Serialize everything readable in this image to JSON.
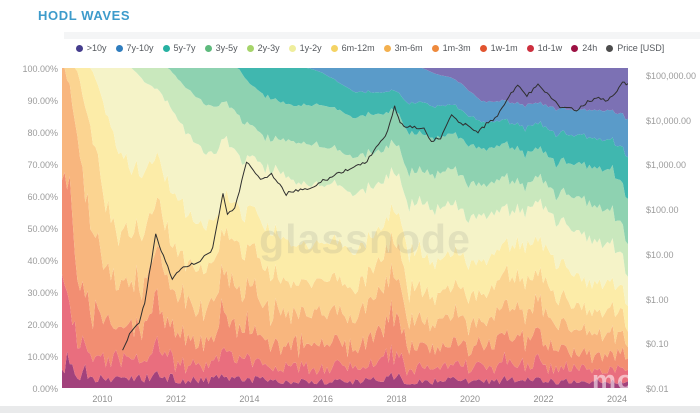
{
  "page": {
    "title": "HODL WAVES",
    "watermark": "glassnode",
    "corner_watermark": "mo"
  },
  "chart_data": {
    "type": "area",
    "stacked": true,
    "stack_unit": "percent",
    "title": "HODL WAVES",
    "x_range": [
      2008.9,
      2024.3
    ],
    "x": [
      2009.0,
      2009.3,
      2009.7,
      2010.0,
      2010.4,
      2010.8,
      2011.2,
      2011.5,
      2011.8,
      2012.2,
      2012.6,
      2013.0,
      2013.3,
      2013.7,
      2014.0,
      2014.4,
      2014.8,
      2015.2,
      2015.6,
      2016.0,
      2016.4,
      2016.8,
      2017.2,
      2017.6,
      2017.95,
      2018.3,
      2018.7,
      2019.1,
      2019.5,
      2019.9,
      2020.3,
      2020.7,
      2021.1,
      2021.5,
      2021.9,
      2022.3,
      2022.7,
      2023.1,
      2023.5,
      2023.9,
      2024.15,
      2024.3
    ],
    "series": [
      {
        "name": ">10y",
        "legend_color": "#453d8d",
        "fill": "#7c71b4",
        "values": [
          0,
          0,
          0,
          0,
          0,
          0,
          0,
          0,
          0,
          0,
          0,
          0,
          0,
          0,
          0,
          0,
          0,
          0,
          0,
          0,
          0,
          0,
          0,
          0,
          0,
          0,
          0,
          2,
          3,
          6,
          11,
          10.5,
          10,
          11.5,
          11,
          13,
          13,
          13,
          13,
          13.5,
          15,
          16
        ]
      },
      {
        "name": "7y-10y",
        "legend_color": "#2f7dbe",
        "fill": "#5a9bc9",
        "values": [
          0,
          0,
          0,
          0,
          0,
          0,
          0,
          0,
          0,
          0,
          0,
          0,
          0,
          0,
          0,
          0,
          0,
          0,
          0,
          1.5,
          4.5,
          7,
          7.5,
          8,
          7,
          11,
          11,
          10,
          8.5,
          8,
          7,
          6.5,
          6,
          7,
          6.5,
          8,
          8,
          8,
          9,
          9,
          11,
          12
        ]
      },
      {
        "name": "5y-7y",
        "legend_color": "#27b1a2",
        "fill": "#40b7af",
        "values": [
          0,
          0,
          0,
          0,
          0,
          0,
          0,
          0,
          0,
          0,
          0,
          0,
          0,
          0,
          5,
          8.5,
          10.5,
          11.5,
          11.5,
          10,
          9,
          8,
          7,
          7,
          6,
          9,
          10,
          10,
          9,
          9,
          9,
          8,
          7,
          8,
          8,
          9,
          9,
          9,
          9,
          9,
          12,
          13
        ]
      },
      {
        "name": "3y-5y",
        "legend_color": "#5eba7d",
        "fill": "#8ed2b1",
        "values": [
          0,
          0,
          0,
          0,
          0,
          0,
          0,
          0,
          0,
          5.5,
          9.5,
          12.5,
          10,
          15,
          13,
          13,
          12,
          11,
          12,
          13,
          13,
          12,
          12,
          12,
          10,
          12,
          12,
          11,
          11,
          12,
          12,
          11,
          10,
          10,
          9,
          10,
          10,
          11,
          12,
          13,
          13.5,
          14
        ]
      },
      {
        "name": "2y-3y",
        "legend_color": "#a6d46a",
        "fill": "#c9e8bd",
        "values": [
          0,
          0,
          0,
          0,
          0,
          0,
          5,
          7,
          11,
          14,
          15,
          15,
          11,
          13,
          10,
          9,
          10,
          12,
          13,
          12,
          11,
          11,
          11,
          10,
          9,
          10,
          10,
          11,
          11,
          11,
          10,
          10,
          9,
          8,
          8,
          8,
          10,
          11,
          11,
          10,
          9.5,
          10
        ]
      },
      {
        "name": "1y-2y",
        "legend_color": "#efee9d",
        "fill": "#f5f3c8",
        "values": [
          0,
          0,
          0,
          10,
          25,
          32,
          28,
          20,
          26,
          25,
          24,
          21,
          17,
          17,
          16,
          18,
          20,
          20,
          19,
          18,
          18,
          18,
          16,
          14,
          12,
          14,
          16,
          17,
          15,
          14,
          15,
          13,
          10,
          11,
          12,
          13,
          14,
          14,
          13,
          12,
          10,
          9.5
        ]
      },
      {
        "name": "6m-12m",
        "legend_color": "#f4d364",
        "fill": "#fceca8",
        "values": [
          0,
          0,
          20,
          30,
          25,
          20,
          18,
          14,
          16,
          16,
          14,
          13,
          11,
          12,
          12,
          13,
          13,
          12,
          11,
          12,
          12,
          12,
          11,
          10,
          9,
          12,
          12,
          11,
          10,
          11,
          11,
          10,
          9,
          11,
          10,
          11,
          10,
          9,
          9,
          8,
          8,
          7.5
        ]
      },
      {
        "name": "3m-6m",
        "legend_color": "#f3b04f",
        "fill": "#fbd491",
        "values": [
          0,
          20,
          28,
          20,
          16,
          15,
          16,
          14,
          16,
          13,
          12,
          12,
          11,
          14,
          12,
          12,
          11,
          10,
          10,
          10,
          10,
          10,
          10,
          10,
          10,
          10,
          9,
          8,
          9,
          9,
          8,
          9,
          10,
          10,
          9,
          9,
          8,
          7,
          7,
          7,
          6.5,
          6
        ]
      },
      {
        "name": "1m-3m",
        "legend_color": "#ee8a3d",
        "fill": "#f8b67e",
        "values": [
          30,
          38,
          25,
          18,
          15,
          14,
          14,
          18,
          13,
          11,
          10,
          11,
          15,
          12,
          13,
          11,
          10,
          10,
          10,
          10,
          9,
          9,
          10,
          11,
          13,
          9,
          8,
          8,
          9,
          8,
          7,
          9,
          11,
          9,
          10,
          8,
          7,
          7,
          6,
          7,
          6,
          4.5
        ]
      },
      {
        "name": "1w-1m",
        "legend_color": "#e1542f",
        "fill": "#f28e72",
        "values": [
          40,
          25,
          15,
          12,
          10,
          10,
          10,
          14,
          9,
          8,
          8,
          8,
          13,
          9,
          10,
          8,
          7,
          7,
          7,
          7,
          7,
          7,
          8,
          9,
          12,
          7,
          6,
          6,
          7,
          6,
          6,
          7,
          9,
          7,
          8,
          6,
          6,
          5,
          5,
          5.5,
          6.5,
          3.5
        ]
      },
      {
        "name": "1d-1w",
        "legend_color": "#cd2f3e",
        "fill": "#e96e7e",
        "values": [
          22,
          12,
          8,
          7,
          6,
          6,
          6,
          9,
          6,
          5,
          5,
          5,
          8,
          5,
          6,
          5,
          4.5,
          4.5,
          4.5,
          4.5,
          4.5,
          4,
          5,
          6,
          8,
          4,
          4,
          4,
          5,
          4,
          4,
          4.5,
          6,
          5,
          5.5,
          4,
          4,
          4,
          4,
          4,
          4.5,
          3
        ]
      },
      {
        "name": "24h",
        "legend_color": "#9c1143",
        "fill": "#a2427c",
        "values": [
          8,
          5,
          4,
          3,
          3,
          3,
          3,
          4,
          3,
          2.5,
          2.5,
          2.5,
          4,
          3,
          3,
          2.5,
          2,
          2,
          2,
          2,
          2,
          2,
          2.5,
          3,
          4,
          2,
          2,
          2,
          2.5,
          2,
          2,
          2,
          3,
          2.5,
          3,
          2,
          2,
          2,
          2,
          2,
          2.5,
          1.5
        ]
      }
    ],
    "price": {
      "name": "Price [USD]",
      "legend_color": "#4d4d4d",
      "line_color": "#2f2f2f",
      "scale": "log",
      "x": [
        2010.55,
        2010.8,
        2011.0,
        2011.15,
        2011.45,
        2011.6,
        2011.9,
        2012.2,
        2012.6,
        2013.0,
        2013.28,
        2013.4,
        2013.6,
        2013.92,
        2014.1,
        2014.3,
        2014.6,
        2015.0,
        2015.2,
        2015.7,
        2016.0,
        2016.5,
        2016.9,
        2017.2,
        2017.45,
        2017.7,
        2017.95,
        2018.1,
        2018.25,
        2018.55,
        2018.75,
        2018.95,
        2019.2,
        2019.5,
        2019.75,
        2020.0,
        2020.22,
        2020.5,
        2020.75,
        2021.0,
        2021.3,
        2021.55,
        2021.85,
        2022.1,
        2022.45,
        2022.7,
        2022.9,
        2023.2,
        2023.5,
        2023.75,
        2024.0,
        2024.15,
        2024.3
      ],
      "values": [
        0.07,
        0.2,
        0.3,
        0.8,
        29,
        12,
        2.8,
        5,
        6.5,
        13,
        230,
        80,
        100,
        1150,
        800,
        450,
        600,
        220,
        250,
        280,
        430,
        670,
        900,
        1200,
        2500,
        4300,
        19000,
        8500,
        7000,
        6500,
        6400,
        3300,
        4000,
        12500,
        8500,
        7200,
        5000,
        9200,
        11500,
        29000,
        61000,
        33000,
        66000,
        38000,
        20000,
        19500,
        16000,
        25000,
        30000,
        27000,
        44000,
        68000,
        64000
      ]
    },
    "y_left": {
      "labels": [
        "100.00%",
        "90.00%",
        "80.00%",
        "70.00%",
        "60.00%",
        "50.00%",
        "40.00%",
        "30.00%",
        "20.00%",
        "10.00%",
        "0.00%"
      ],
      "min": 0,
      "max": 100
    },
    "y_right": {
      "labels": [
        "$100,000.00",
        "$10,000.00",
        "$1,000.00",
        "$100.00",
        "$10.00",
        "$1.00",
        "$0.10",
        "$0.01"
      ],
      "values": [
        100000,
        10000,
        1000,
        100,
        10,
        1,
        0.1,
        0.01
      ],
      "min": 0.01,
      "max": 100000
    },
    "xticks": [
      "2010",
      "2012",
      "2014",
      "2016",
      "2018",
      "2020",
      "2022",
      "2024"
    ],
    "legend_position": "top",
    "grid": false
  }
}
